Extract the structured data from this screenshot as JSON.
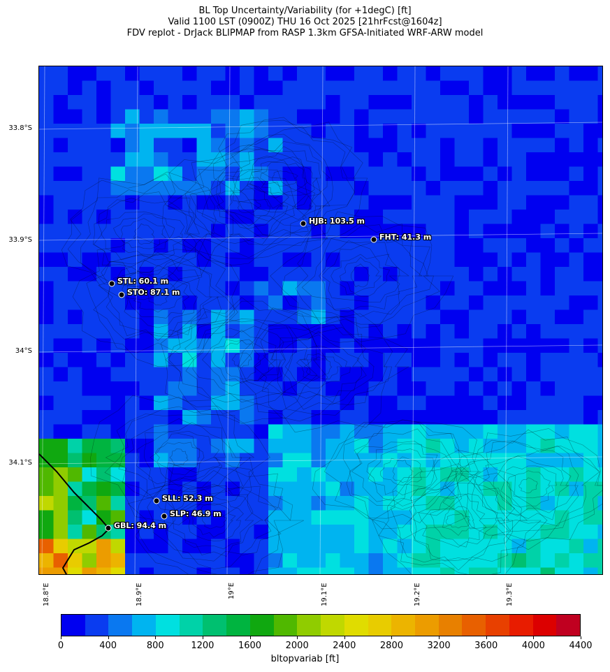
{
  "title": {
    "line1": "BL Top Uncertainty/Variability (for +1degC) [ft]",
    "line2": "Valid 1100 LST (0900Z) THU 16 Oct 2025 [21hrFcst@1604z]",
    "line3": "FDV replot - DrJack BLIPMAP from RASP 1.3km GFSA-Initiated WRF-ARW model"
  },
  "map": {
    "lat_labels": [
      "33.8°S",
      "33.9°S",
      "34°S",
      "34.1°S"
    ],
    "lon_labels": [
      "18.8°E",
      "18.9°E",
      "19°E",
      "19.1°E",
      "19.2°E",
      "19.3°E"
    ],
    "stations": [
      {
        "id": "HJB",
        "label": "HJB: 103.5 m"
      },
      {
        "id": "FHT",
        "label": "FHT: 41.3 m"
      },
      {
        "id": "STL",
        "label": "STL: 60.1 m"
      },
      {
        "id": "STO",
        "label": "STO: 87.1 m"
      },
      {
        "id": "SLL",
        "label": "SLL: 52.3 m"
      },
      {
        "id": "SLP",
        "label": "SLP: 46.9 m"
      },
      {
        "id": "GBL",
        "label": "GBL: 94.4 m"
      }
    ]
  },
  "colorbar": {
    "label": "bltopvariab [ft]",
    "tick_labels": [
      "0",
      "400",
      "800",
      "1200",
      "1600",
      "2000",
      "2400",
      "2800",
      "3200",
      "3600",
      "4000",
      "4400"
    ],
    "colors": [
      "#0000f0",
      "#0a3cf0",
      "#0a78f0",
      "#00b4f0",
      "#00e0e0",
      "#00d2a8",
      "#00c070",
      "#00b440",
      "#10a810",
      "#50b800",
      "#90cc00",
      "#c0d800",
      "#e0dc00",
      "#e8cc00",
      "#ecb400",
      "#ec9c00",
      "#e88000",
      "#e86000",
      "#e84000",
      "#e81c00",
      "#dc0000",
      "#c00020"
    ]
  }
}
